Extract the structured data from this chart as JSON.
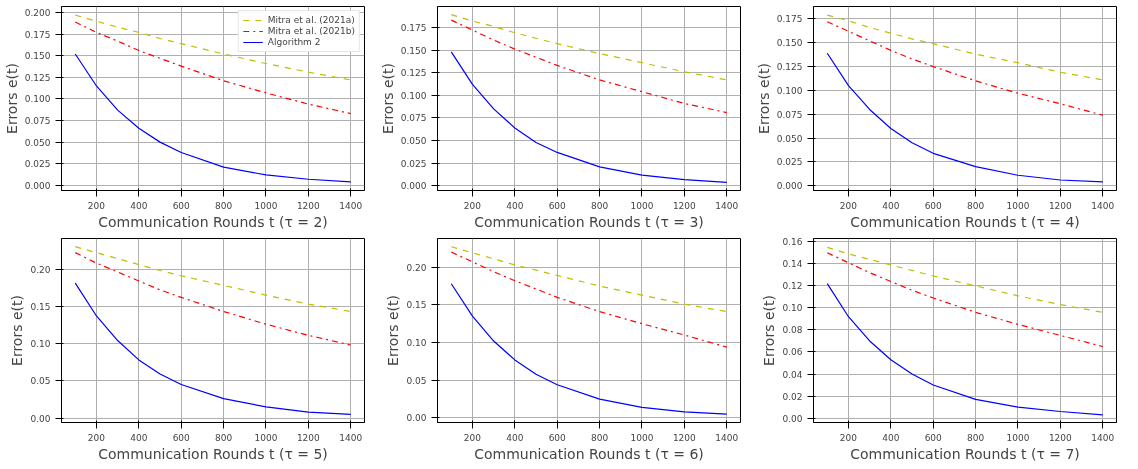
{
  "chart_data": [
    {
      "type": "line",
      "xlabel": "Communication Rounds t (τ = 2)",
      "ylabel": "Errors e(t)",
      "x": [
        100,
        200,
        300,
        400,
        500,
        600,
        800,
        1000,
        1200,
        1400
      ],
      "xlim": [
        35,
        1465
      ],
      "xticks": [
        200,
        400,
        600,
        800,
        1000,
        1200,
        1400
      ],
      "ylim": [
        -0.006,
        0.207
      ],
      "yticks": [
        {
          "value": 0,
          "label": "0.000"
        },
        {
          "value": 0.025,
          "label": "0.025"
        },
        {
          "value": 0.05,
          "label": "0.050"
        },
        {
          "value": 0.075,
          "label": "0.075"
        },
        {
          "value": 0.1,
          "label": "0.100"
        },
        {
          "value": 0.125,
          "label": "0.125"
        },
        {
          "value": 0.15,
          "label": "0.150"
        },
        {
          "value": 0.175,
          "label": "0.175"
        },
        {
          "value": 0.2,
          "label": "0.200"
        }
      ],
      "grid": true,
      "legend": "top right",
      "series": [
        {
          "name": "Mitra et al. (2021a)",
          "color": "#bfbf00",
          "line_style": "dashed",
          "values": [
            0.197,
            0.19,
            0.183,
            0.177,
            0.17,
            0.164,
            0.152,
            0.141,
            0.131,
            0.122
          ]
        },
        {
          "name": "Mitra et al. (2021b)",
          "color": "#ff0000",
          "line_style": "dashdot",
          "values": [
            0.189,
            0.177,
            0.167,
            0.156,
            0.147,
            0.138,
            0.121,
            0.107,
            0.094,
            0.083
          ]
        },
        {
          "name": "Algorithm 2",
          "color": "#0000ff",
          "line_style": "solid",
          "values": [
            0.152,
            0.115,
            0.087,
            0.066,
            0.05,
            0.038,
            0.021,
            0.012,
            0.007,
            0.004
          ]
        }
      ]
    },
    {
      "type": "line",
      "xlabel": "Communication Rounds t (τ = 3)",
      "ylabel": "Errors e(t)",
      "x": [
        100,
        200,
        300,
        400,
        500,
        600,
        800,
        1000,
        1200,
        1400
      ],
      "xlim": [
        35,
        1465
      ],
      "xticks": [
        200,
        400,
        600,
        800,
        1000,
        1200,
        1400
      ],
      "ylim": [
        -0.005,
        0.198
      ],
      "yticks": [
        {
          "value": 0,
          "label": "0.000"
        },
        {
          "value": 0.025,
          "label": "0.025"
        },
        {
          "value": 0.05,
          "label": "0.050"
        },
        {
          "value": 0.075,
          "label": "0.075"
        },
        {
          "value": 0.1,
          "label": "0.100"
        },
        {
          "value": 0.125,
          "label": "0.125"
        },
        {
          "value": 0.15,
          "label": "0.150"
        },
        {
          "value": 0.175,
          "label": "0.175"
        }
      ],
      "grid": true,
      "series": [
        {
          "color": "#bfbf00",
          "line_style": "dashed",
          "values": [
            0.189,
            0.182,
            0.176,
            0.169,
            0.163,
            0.157,
            0.146,
            0.136,
            0.126,
            0.117
          ]
        },
        {
          "color": "#ff0000",
          "line_style": "dashdot",
          "values": [
            0.183,
            0.172,
            0.161,
            0.151,
            0.142,
            0.133,
            0.117,
            0.104,
            0.091,
            0.081
          ]
        },
        {
          "color": "#0000ff",
          "line_style": "solid",
          "values": [
            0.148,
            0.112,
            0.085,
            0.064,
            0.048,
            0.037,
            0.021,
            0.012,
            0.007,
            0.004
          ]
        }
      ]
    },
    {
      "type": "line",
      "xlabel": "Communication Rounds t (τ = 4)",
      "ylabel": "Errors e(t)",
      "x": [
        100,
        200,
        300,
        400,
        500,
        600,
        800,
        1000,
        1200,
        1400
      ],
      "xlim": [
        35,
        1465
      ],
      "xticks": [
        200,
        400,
        600,
        800,
        1000,
        1200,
        1400
      ],
      "ylim": [
        -0.005,
        0.188
      ],
      "yticks": [
        {
          "value": 0,
          "label": "0.000"
        },
        {
          "value": 0.025,
          "label": "0.025"
        },
        {
          "value": 0.05,
          "label": "0.050"
        },
        {
          "value": 0.075,
          "label": "0.075"
        },
        {
          "value": 0.1,
          "label": "0.100"
        },
        {
          "value": 0.125,
          "label": "0.125"
        },
        {
          "value": 0.15,
          "label": "0.150"
        },
        {
          "value": 0.175,
          "label": "0.175"
        }
      ],
      "grid": true,
      "series": [
        {
          "color": "#bfbf00",
          "line_style": "dashed",
          "values": [
            0.179,
            0.173,
            0.166,
            0.16,
            0.154,
            0.149,
            0.138,
            0.129,
            0.119,
            0.111
          ]
        },
        {
          "color": "#ff0000",
          "line_style": "dashdot",
          "values": [
            0.172,
            0.162,
            0.152,
            0.142,
            0.133,
            0.125,
            0.11,
            0.097,
            0.086,
            0.074
          ]
        },
        {
          "color": "#0000ff",
          "line_style": "solid",
          "values": [
            0.139,
            0.105,
            0.08,
            0.06,
            0.045,
            0.034,
            0.02,
            0.011,
            0.006,
            0.004
          ]
        }
      ]
    },
    {
      "type": "line",
      "xlabel": "Communication Rounds t (τ = 5)",
      "ylabel": "Errors e(t)",
      "x": [
        100,
        200,
        300,
        400,
        500,
        600,
        800,
        1000,
        1200,
        1400
      ],
      "xlim": [
        35,
        1465
      ],
      "xticks": [
        200,
        400,
        600,
        800,
        1000,
        1200,
        1400
      ],
      "ylim": [
        -0.006,
        0.241
      ],
      "yticks": [
        {
          "value": 0,
          "label": "0.00"
        },
        {
          "value": 0.05,
          "label": "0.05"
        },
        {
          "value": 0.1,
          "label": "0.10"
        },
        {
          "value": 0.15,
          "label": "0.15"
        },
        {
          "value": 0.2,
          "label": "0.20"
        }
      ],
      "grid": true,
      "series": [
        {
          "color": "#bfbf00",
          "line_style": "dashed",
          "values": [
            0.23,
            0.222,
            0.214,
            0.206,
            0.198,
            0.191,
            0.178,
            0.165,
            0.153,
            0.143
          ]
        },
        {
          "color": "#ff0000",
          "line_style": "dashdot",
          "values": [
            0.222,
            0.208,
            0.196,
            0.184,
            0.172,
            0.162,
            0.143,
            0.126,
            0.111,
            0.098
          ]
        },
        {
          "color": "#0000ff",
          "line_style": "solid",
          "values": [
            0.181,
            0.137,
            0.104,
            0.078,
            0.059,
            0.045,
            0.026,
            0.015,
            0.008,
            0.005
          ]
        }
      ]
    },
    {
      "type": "line",
      "xlabel": "Communication Rounds t (τ = 6)",
      "ylabel": "Errors e(t)",
      "x": [
        100,
        200,
        300,
        400,
        500,
        600,
        800,
        1000,
        1200,
        1400
      ],
      "xlim": [
        35,
        1465
      ],
      "xticks": [
        200,
        400,
        600,
        800,
        1000,
        1200,
        1400
      ],
      "ylim": [
        -0.006,
        0.238
      ],
      "yticks": [
        {
          "value": 0,
          "label": "0.00"
        },
        {
          "value": 0.05,
          "label": "0.05"
        },
        {
          "value": 0.1,
          "label": "0.10"
        },
        {
          "value": 0.15,
          "label": "0.15"
        },
        {
          "value": 0.2,
          "label": "0.20"
        }
      ],
      "grid": true,
      "series": [
        {
          "color": "#bfbf00",
          "line_style": "dashed",
          "values": [
            0.227,
            0.219,
            0.211,
            0.203,
            0.196,
            0.189,
            0.175,
            0.163,
            0.151,
            0.141
          ]
        },
        {
          "color": "#ff0000",
          "line_style": "dashdot",
          "values": [
            0.22,
            0.207,
            0.194,
            0.182,
            0.171,
            0.16,
            0.141,
            0.125,
            0.11,
            0.094
          ]
        },
        {
          "color": "#0000ff",
          "line_style": "solid",
          "values": [
            0.178,
            0.135,
            0.102,
            0.077,
            0.058,
            0.044,
            0.025,
            0.014,
            0.008,
            0.005
          ]
        }
      ]
    },
    {
      "type": "line",
      "xlabel": "Communication Rounds t (τ = 7)",
      "ylabel": "Errors e(t)",
      "x": [
        100,
        200,
        300,
        400,
        500,
        600,
        800,
        1000,
        1200,
        1400
      ],
      "xlim": [
        35,
        1465
      ],
      "xticks": [
        200,
        400,
        600,
        800,
        1000,
        1200,
        1400
      ],
      "ylim": [
        -0.004,
        0.163
      ],
      "yticks": [
        {
          "value": 0,
          "label": "0.00"
        },
        {
          "value": 0.02,
          "label": "0.02"
        },
        {
          "value": 0.04,
          "label": "0.04"
        },
        {
          "value": 0.06,
          "label": "0.06"
        },
        {
          "value": 0.08,
          "label": "0.08"
        },
        {
          "value": 0.1,
          "label": "0.10"
        },
        {
          "value": 0.12,
          "label": "0.12"
        },
        {
          "value": 0.14,
          "label": "0.14"
        },
        {
          "value": 0.16,
          "label": "0.16"
        }
      ],
      "grid": true,
      "series": [
        {
          "color": "#bfbf00",
          "line_style": "dashed",
          "values": [
            0.155,
            0.149,
            0.144,
            0.139,
            0.134,
            0.129,
            0.12,
            0.111,
            0.103,
            0.096
          ]
        },
        {
          "color": "#ff0000",
          "line_style": "dashdot",
          "values": [
            0.15,
            0.141,
            0.132,
            0.124,
            0.116,
            0.109,
            0.096,
            0.085,
            0.075,
            0.065
          ]
        },
        {
          "color": "#0000ff",
          "line_style": "solid",
          "values": [
            0.122,
            0.092,
            0.07,
            0.053,
            0.04,
            0.03,
            0.017,
            0.01,
            0.006,
            0.003
          ]
        }
      ]
    }
  ]
}
